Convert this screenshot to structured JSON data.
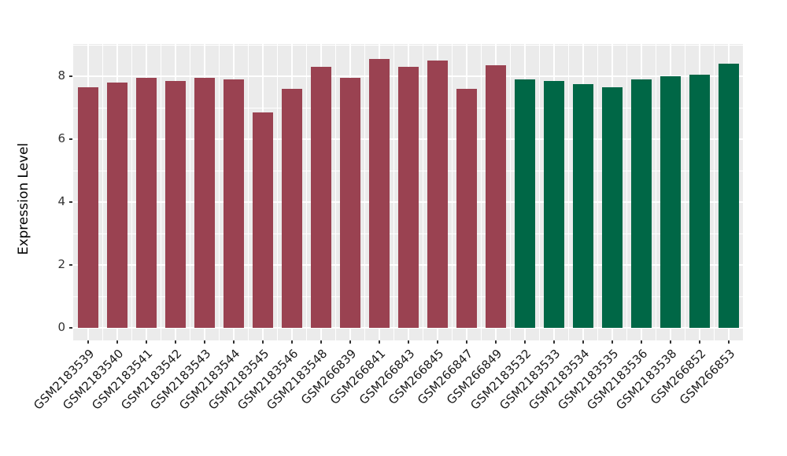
{
  "chart_data": {
    "type": "bar",
    "title": "",
    "xlabel": "",
    "ylabel": "Expression Level",
    "yticks": [
      "0",
      "2",
      "4",
      "6",
      "8"
    ],
    "ytick_values": [
      0,
      2,
      4,
      6,
      8
    ],
    "ylim": [
      -0.4,
      9.05
    ],
    "grid": "on",
    "legend_position": "none",
    "panel_bg": "#EBEBEB",
    "grid_color": "#FFFFFF",
    "tick_color": "#333333",
    "palette": [
      "#9A4251",
      "#006746"
    ],
    "categories": [
      "GSM2183539",
      "GSM2183540",
      "GSM2183541",
      "GSM2183542",
      "GSM2183543",
      "GSM2183544",
      "GSM2183545",
      "GSM2183546",
      "GSM2183548",
      "GSM266839",
      "GSM266841",
      "GSM266843",
      "GSM266845",
      "GSM266847",
      "GSM266849",
      "GSM2183532",
      "GSM2183533",
      "GSM2183534",
      "GSM2183535",
      "GSM2183536",
      "GSM2183538",
      "GSM266852",
      "GSM266853"
    ],
    "values": [
      7.65,
      7.8,
      7.95,
      7.85,
      7.95,
      7.9,
      6.85,
      7.6,
      8.3,
      7.95,
      8.55,
      8.3,
      8.5,
      7.6,
      8.35,
      7.9,
      7.85,
      7.75,
      7.65,
      7.9,
      8.0,
      8.05,
      8.4
    ],
    "group_index": [
      0,
      0,
      0,
      0,
      0,
      0,
      0,
      0,
      0,
      0,
      0,
      0,
      0,
      0,
      0,
      1,
      1,
      1,
      1,
      1,
      1,
      1,
      1
    ]
  }
}
